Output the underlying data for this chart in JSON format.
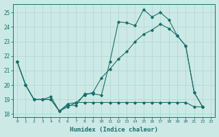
{
  "xlabel": "Humidex (Indice chaleur)",
  "bg_color": "#cce9e6",
  "grid_color": "#afd5d2",
  "line_color": "#1a6e68",
  "xlim": [
    -0.5,
    23.5
  ],
  "ylim": [
    17.8,
    25.6
  ],
  "yticks": [
    18,
    19,
    20,
    21,
    22,
    23,
    24,
    25
  ],
  "xticks": [
    0,
    1,
    2,
    3,
    4,
    5,
    6,
    7,
    8,
    9,
    10,
    11,
    12,
    13,
    14,
    15,
    16,
    17,
    18,
    19,
    20,
    21,
    22,
    23
  ],
  "line1_x": [
    0,
    1,
    2,
    3,
    4,
    5,
    6,
    7,
    8,
    9,
    10,
    11,
    12,
    13,
    14,
    15,
    16,
    17,
    18,
    19,
    20,
    21,
    22
  ],
  "line1_y": [
    21.6,
    20.0,
    19.0,
    19.0,
    19.0,
    18.2,
    18.6,
    18.6,
    19.4,
    19.4,
    19.3,
    21.6,
    24.35,
    24.3,
    24.1,
    25.2,
    24.7,
    25.0,
    24.5,
    23.4,
    22.7,
    19.5,
    18.5
  ],
  "line2_x": [
    0,
    1,
    2,
    3,
    4,
    5,
    6,
    7,
    8,
    9,
    10,
    11,
    12,
    13,
    14,
    15,
    16,
    17,
    18,
    19,
    20,
    21,
    22
  ],
  "line2_y": [
    21.6,
    20.0,
    19.0,
    19.0,
    19.0,
    18.2,
    18.5,
    18.8,
    19.3,
    19.5,
    20.5,
    21.1,
    21.8,
    22.3,
    23.0,
    23.5,
    23.8,
    24.2,
    23.9,
    23.4,
    22.7,
    19.5,
    18.5
  ],
  "line3_x": [
    0,
    1,
    2,
    3,
    4,
    5,
    6,
    7,
    8,
    9,
    10,
    11,
    12,
    13,
    14,
    15,
    16,
    17,
    18,
    19,
    20,
    21,
    22
  ],
  "line3_y": [
    21.6,
    20.0,
    19.0,
    19.0,
    19.2,
    18.2,
    18.7,
    18.8,
    18.8,
    18.8,
    18.8,
    18.8,
    18.8,
    18.8,
    18.8,
    18.8,
    18.8,
    18.8,
    18.8,
    18.8,
    18.8,
    18.5,
    18.5
  ]
}
